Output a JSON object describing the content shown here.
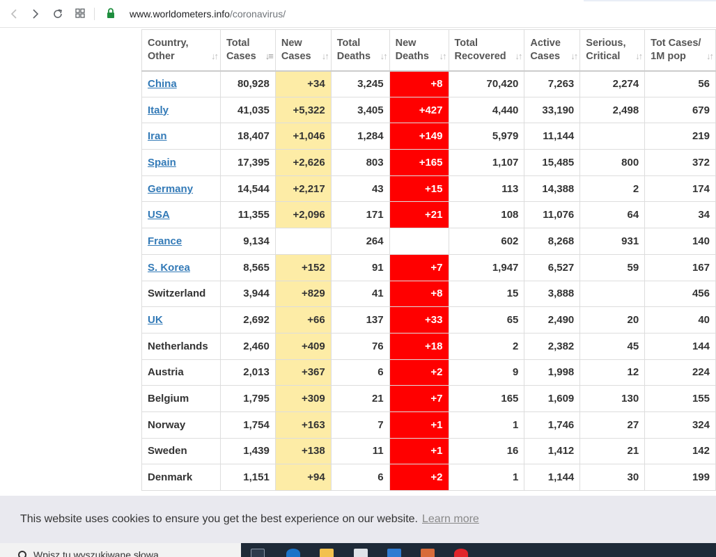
{
  "browser": {
    "url_domain": "www.worldometers.info",
    "url_path": "/coronavirus/"
  },
  "table": {
    "headers": [
      {
        "line1": "Country,",
        "line2": "Other"
      },
      {
        "line1": "Total",
        "line2": "Cases"
      },
      {
        "line1": "New",
        "line2": "Cases"
      },
      {
        "line1": "Total",
        "line2": "Deaths"
      },
      {
        "line1": "New",
        "line2": "Deaths"
      },
      {
        "line1": "Total",
        "line2": "Recovered"
      },
      {
        "line1": "Active",
        "line2": "Cases"
      },
      {
        "line1": "Serious,",
        "line2": "Critical"
      },
      {
        "line1": "Tot Cases/",
        "line2": "1M pop"
      }
    ],
    "rows": [
      {
        "country": "China",
        "link": true,
        "total_cases": "80,928",
        "new_cases": "+34",
        "total_deaths": "3,245",
        "new_deaths": "+8",
        "recovered": "70,420",
        "active": "7,263",
        "serious": "2,274",
        "per_m": "56"
      },
      {
        "country": "Italy",
        "link": true,
        "total_cases": "41,035",
        "new_cases": "+5,322",
        "total_deaths": "3,405",
        "new_deaths": "+427",
        "recovered": "4,440",
        "active": "33,190",
        "serious": "2,498",
        "per_m": "679"
      },
      {
        "country": "Iran",
        "link": true,
        "total_cases": "18,407",
        "new_cases": "+1,046",
        "total_deaths": "1,284",
        "new_deaths": "+149",
        "recovered": "5,979",
        "active": "11,144",
        "serious": "",
        "per_m": "219"
      },
      {
        "country": "Spain",
        "link": true,
        "total_cases": "17,395",
        "new_cases": "+2,626",
        "total_deaths": "803",
        "new_deaths": "+165",
        "recovered": "1,107",
        "active": "15,485",
        "serious": "800",
        "per_m": "372"
      },
      {
        "country": "Germany",
        "link": true,
        "total_cases": "14,544",
        "new_cases": "+2,217",
        "total_deaths": "43",
        "new_deaths": "+15",
        "recovered": "113",
        "active": "14,388",
        "serious": "2",
        "per_m": "174"
      },
      {
        "country": "USA",
        "link": true,
        "total_cases": "11,355",
        "new_cases": "+2,096",
        "total_deaths": "171",
        "new_deaths": "+21",
        "recovered": "108",
        "active": "11,076",
        "serious": "64",
        "per_m": "34"
      },
      {
        "country": "France",
        "link": true,
        "total_cases": "9,134",
        "new_cases": "",
        "total_deaths": "264",
        "new_deaths": "",
        "recovered": "602",
        "active": "8,268",
        "serious": "931",
        "per_m": "140"
      },
      {
        "country": "S. Korea",
        "link": true,
        "total_cases": "8,565",
        "new_cases": "+152",
        "total_deaths": "91",
        "new_deaths": "+7",
        "recovered": "1,947",
        "active": "6,527",
        "serious": "59",
        "per_m": "167"
      },
      {
        "country": "Switzerland",
        "link": false,
        "total_cases": "3,944",
        "new_cases": "+829",
        "total_deaths": "41",
        "new_deaths": "+8",
        "recovered": "15",
        "active": "3,888",
        "serious": "",
        "per_m": "456"
      },
      {
        "country": "UK",
        "link": true,
        "total_cases": "2,692",
        "new_cases": "+66",
        "total_deaths": "137",
        "new_deaths": "+33",
        "recovered": "65",
        "active": "2,490",
        "serious": "20",
        "per_m": "40"
      },
      {
        "country": "Netherlands",
        "link": false,
        "total_cases": "2,460",
        "new_cases": "+409",
        "total_deaths": "76",
        "new_deaths": "+18",
        "recovered": "2",
        "active": "2,382",
        "serious": "45",
        "per_m": "144"
      },
      {
        "country": "Austria",
        "link": false,
        "total_cases": "2,013",
        "new_cases": "+367",
        "total_deaths": "6",
        "new_deaths": "+2",
        "recovered": "9",
        "active": "1,998",
        "serious": "12",
        "per_m": "224"
      },
      {
        "country": "Belgium",
        "link": false,
        "total_cases": "1,795",
        "new_cases": "+309",
        "total_deaths": "21",
        "new_deaths": "+7",
        "recovered": "165",
        "active": "1,609",
        "serious": "130",
        "per_m": "155"
      },
      {
        "country": "Norway",
        "link": false,
        "total_cases": "1,754",
        "new_cases": "+163",
        "total_deaths": "7",
        "new_deaths": "+1",
        "recovered": "1",
        "active": "1,746",
        "serious": "27",
        "per_m": "324"
      },
      {
        "country": "Sweden",
        "link": false,
        "total_cases": "1,439",
        "new_cases": "+138",
        "total_deaths": "11",
        "new_deaths": "+1",
        "recovered": "16",
        "active": "1,412",
        "serious": "21",
        "per_m": "142"
      },
      {
        "country": "Denmark",
        "link": false,
        "total_cases": "1,151",
        "new_cases": "+94",
        "total_deaths": "6",
        "new_deaths": "+2",
        "recovered": "1",
        "active": "1,144",
        "serious": "30",
        "per_m": "199"
      }
    ]
  },
  "cookie": {
    "text": "This website uses cookies to ensure you get the best experience on our website.",
    "link": "Learn more"
  },
  "taskbar": {
    "search_placeholder": "Wpisz tu wyszukiwane słowa"
  },
  "colors": {
    "new_cases_bg": "#fdeca6",
    "new_deaths_bg": "#ff0000",
    "link": "#337ab7"
  }
}
